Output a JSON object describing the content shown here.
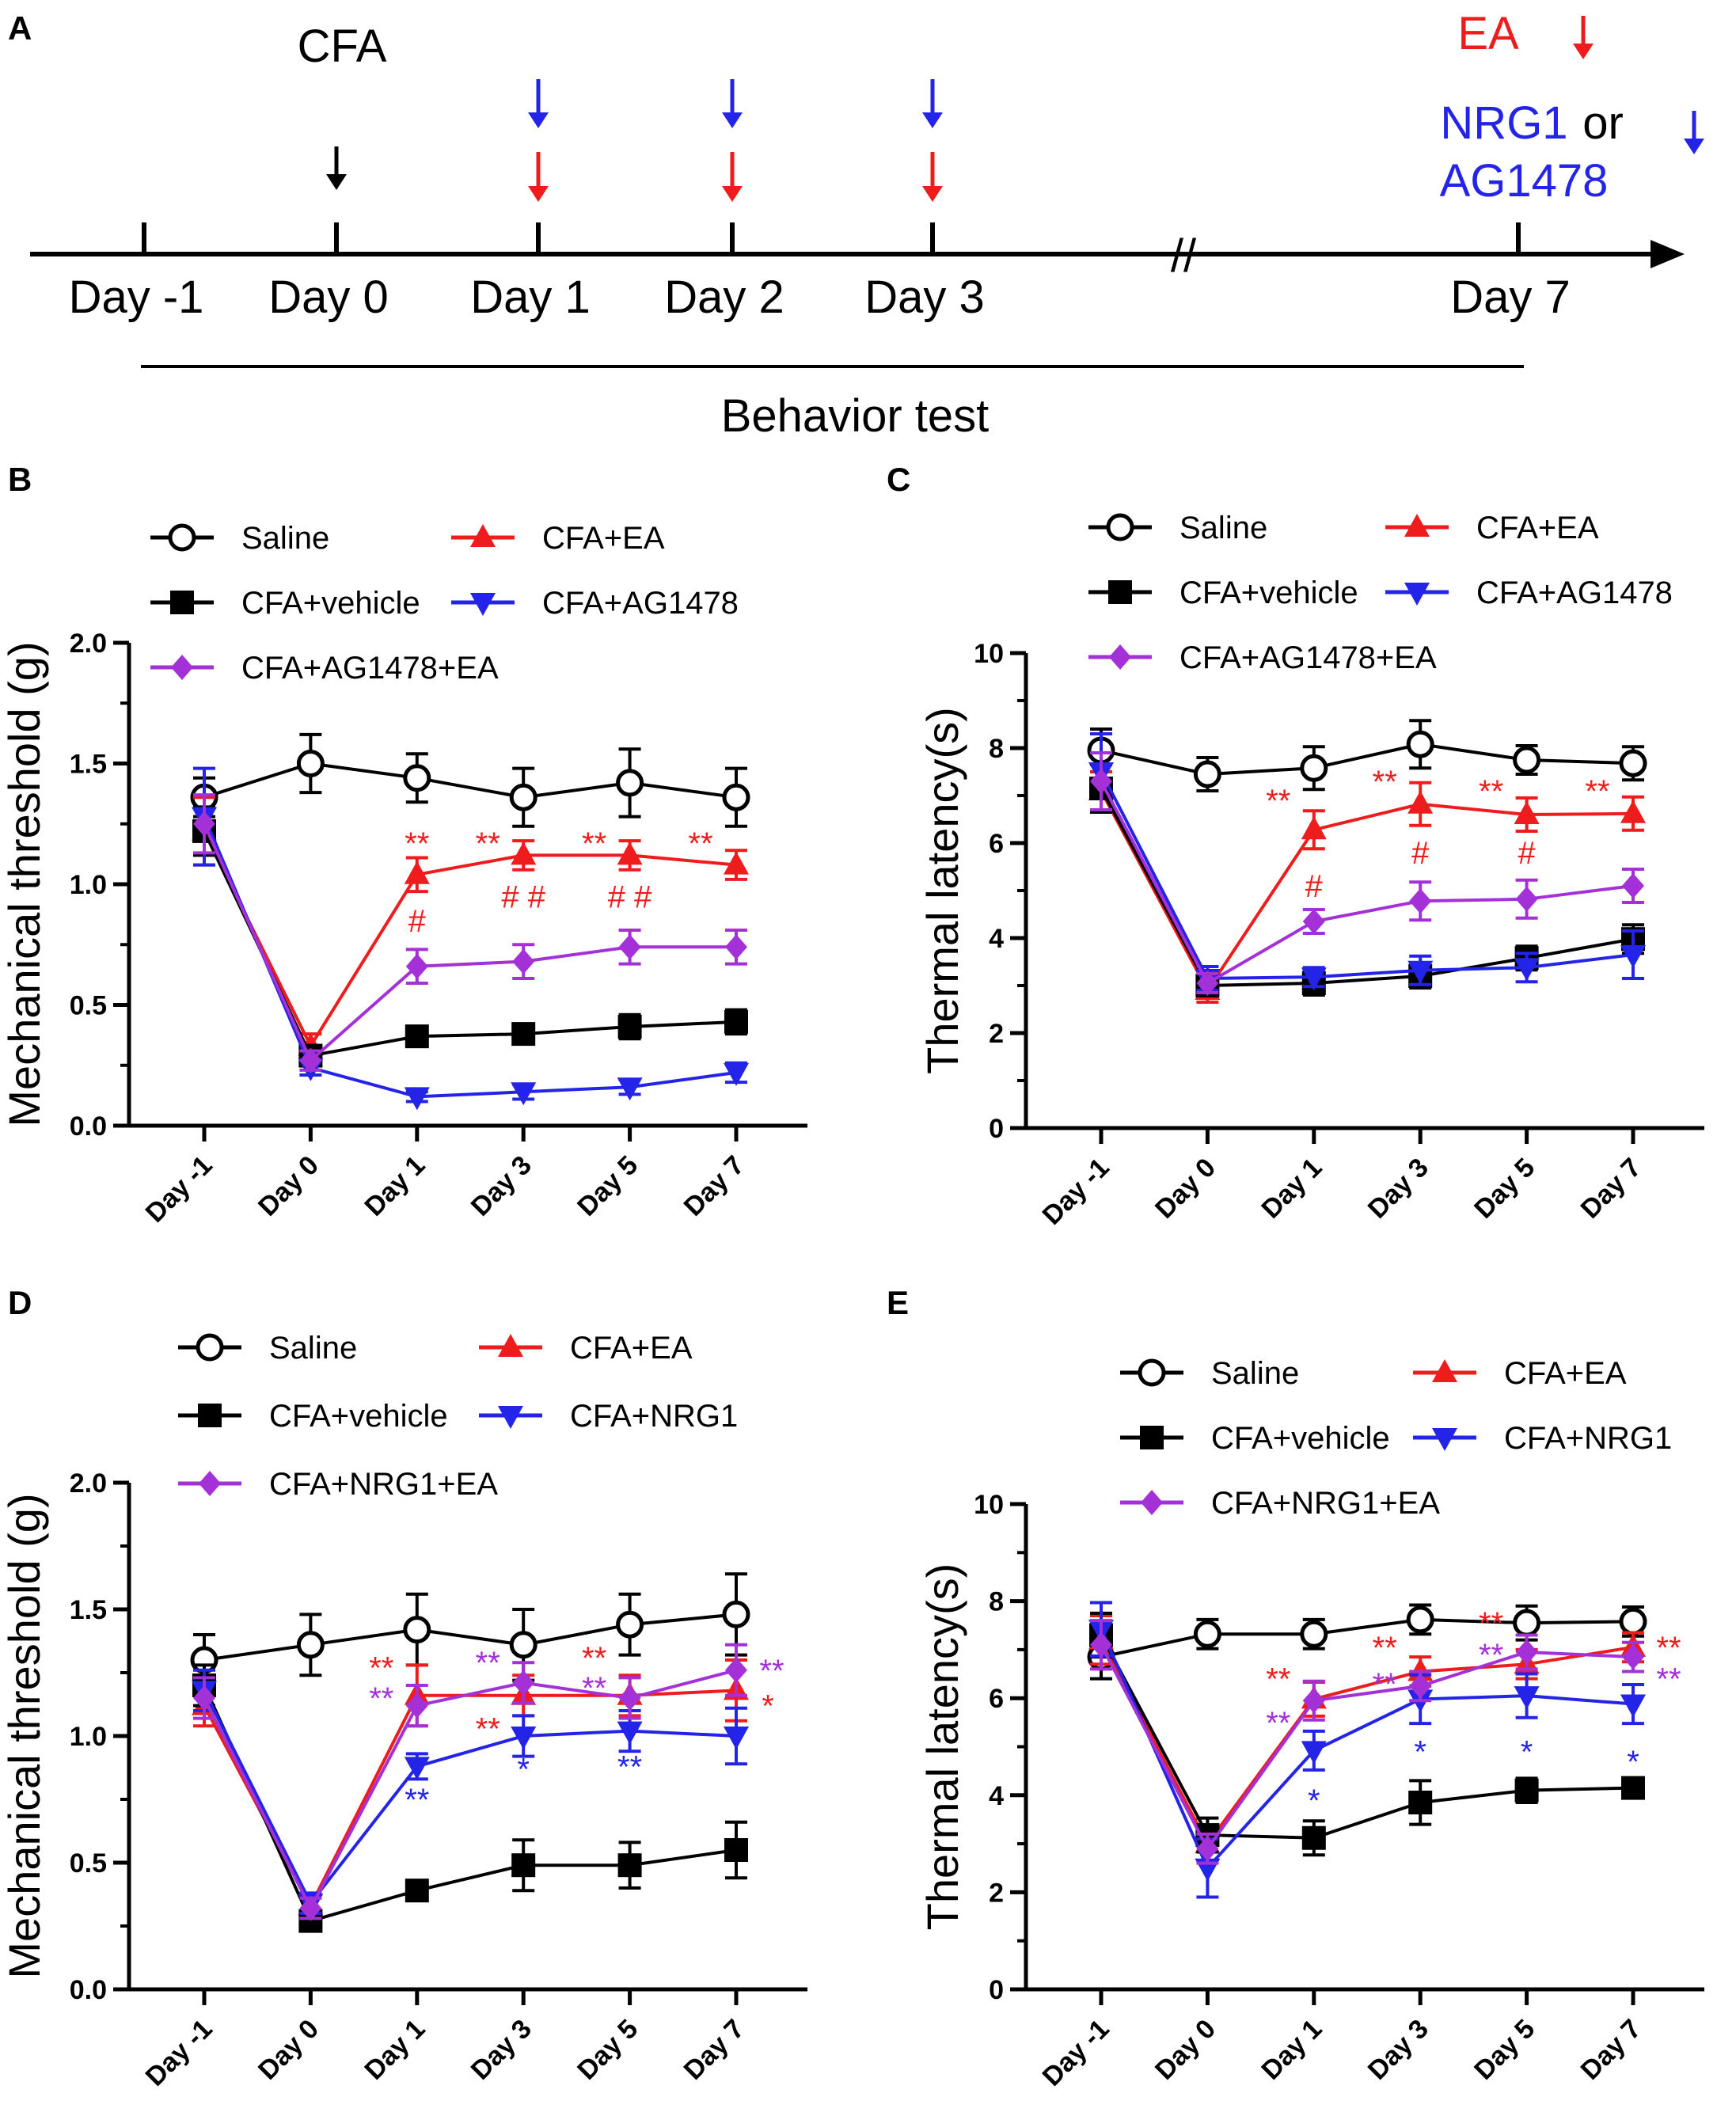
{
  "panel_labels": {
    "A": "A",
    "B": "B",
    "C": "C",
    "D": "D",
    "E": "E"
  },
  "colors": {
    "black": "#000000",
    "red": "#ee1c1c",
    "blue": "#2424e8",
    "purple": "#a431d8"
  },
  "timeline": {
    "cfa_label": "CFA",
    "ea_label": "EA",
    "nrg1_label": "NRG1",
    "or_label": "or",
    "ag_label": "AG1478",
    "behavior_label": "Behavior test",
    "break_mark": "//",
    "days": [
      "Day -1",
      "Day 0",
      "Day 1",
      "Day 2",
      "Day 3",
      "Day 7"
    ]
  },
  "chart_data": [
    {
      "panel": "B",
      "type": "line",
      "ylabel": "Mechanical threshold (g)",
      "ylim": [
        0,
        2.0
      ],
      "yticks": [
        "0.0",
        "0.5",
        "1.0",
        "1.5",
        "2.0"
      ],
      "categories": [
        "Day -1",
        "Day 0",
        "Day 1",
        "Day 3",
        "Day 5",
        "Day 7"
      ],
      "legend": {
        "position": "top",
        "items": [
          "Saline",
          "CFA+EA",
          "CFA+vehicle",
          "CFA+AG1478",
          "CFA+AG1478+EA"
        ]
      },
      "series": [
        {
          "name": "Saline",
          "color": "black",
          "marker": "circle",
          "values": [
            1.36,
            1.5,
            1.44,
            1.36,
            1.42,
            1.36
          ],
          "err": [
            0.08,
            0.12,
            0.1,
            0.12,
            0.14,
            0.12
          ]
        },
        {
          "name": "CFA+EA",
          "color": "red",
          "marker": "triangle-up",
          "values": [
            1.22,
            0.33,
            1.04,
            1.12,
            1.12,
            1.08
          ],
          "err": [
            0.14,
            0.05,
            0.07,
            0.06,
            0.06,
            0.06
          ]
        },
        {
          "name": "CFA+vehicle",
          "color": "black",
          "marker": "square",
          "values": [
            1.22,
            0.29,
            0.37,
            0.38,
            0.41,
            0.43
          ],
          "err": [
            0.1,
            0.04,
            0.03,
            0.04,
            0.05,
            0.05
          ]
        },
        {
          "name": "CFA+AG1478",
          "color": "blue",
          "marker": "triangle-down",
          "values": [
            1.28,
            0.24,
            0.12,
            0.14,
            0.16,
            0.22
          ],
          "err": [
            0.2,
            0.03,
            0.02,
            0.03,
            0.03,
            0.04
          ]
        },
        {
          "name": "CFA+AG1478+EA",
          "color": "purple",
          "marker": "diamond",
          "values": [
            1.25,
            0.27,
            0.66,
            0.68,
            0.74,
            0.74
          ],
          "err": [
            0.12,
            0.04,
            0.07,
            0.07,
            0.07,
            0.07
          ]
        }
      ],
      "annotations": [
        {
          "text": "**",
          "color": "red",
          "cat": 2,
          "y": 1.17,
          "dx": 0
        },
        {
          "text": "#",
          "color": "red",
          "cat": 2,
          "y": 0.85,
          "dx": 0
        },
        {
          "text": "**",
          "color": "red",
          "cat": 3,
          "y": 1.17,
          "dx": -45
        },
        {
          "text": "# #",
          "color": "red",
          "cat": 3,
          "y": 0.95,
          "dx": 0
        },
        {
          "text": "**",
          "color": "red",
          "cat": 4,
          "y": 1.17,
          "dx": -45
        },
        {
          "text": "# #",
          "color": "red",
          "cat": 4,
          "y": 0.95,
          "dx": 0
        },
        {
          "text": "**",
          "color": "red",
          "cat": 5,
          "y": 1.17,
          "dx": -45
        }
      ]
    },
    {
      "panel": "C",
      "type": "line",
      "ylabel": "Thermal latency(s)",
      "ylim": [
        0,
        10
      ],
      "yticks": [
        "0",
        "2",
        "4",
        "6",
        "8",
        "10"
      ],
      "categories": [
        "Day -1",
        "Day 0",
        "Day 1",
        "Day 3",
        "Day 5",
        "Day 7"
      ],
      "legend": {
        "position": "top",
        "items": [
          "Saline",
          "CFA+EA",
          "CFA+vehicle",
          "CFA+AG1478",
          "CFA+AG1478+EA"
        ]
      },
      "series": [
        {
          "name": "Saline",
          "color": "black",
          "marker": "circle",
          "values": [
            7.95,
            7.45,
            7.58,
            8.08,
            7.75,
            7.68
          ],
          "err": [
            0.45,
            0.35,
            0.45,
            0.5,
            0.3,
            0.35
          ]
        },
        {
          "name": "CFA+EA",
          "color": "red",
          "marker": "triangle-up",
          "values": [
            7.1,
            2.9,
            6.28,
            6.82,
            6.6,
            6.62
          ],
          "err": [
            0.4,
            0.25,
            0.4,
            0.45,
            0.35,
            0.35
          ]
        },
        {
          "name": "CFA+vehicle",
          "color": "black",
          "marker": "square",
          "values": [
            7.15,
            3.0,
            3.05,
            3.2,
            3.58,
            3.98
          ],
          "err": [
            0.5,
            0.2,
            0.25,
            0.25,
            0.25,
            0.3
          ]
        },
        {
          "name": "CFA+AG1478",
          "color": "blue",
          "marker": "triangle-down",
          "values": [
            7.5,
            3.15,
            3.18,
            3.32,
            3.38,
            3.65
          ],
          "err": [
            0.8,
            0.25,
            0.2,
            0.3,
            0.3,
            0.5
          ]
        },
        {
          "name": "CFA+AG1478+EA",
          "color": "purple",
          "marker": "diamond",
          "values": [
            7.3,
            3.05,
            4.35,
            4.78,
            4.82,
            5.1
          ],
          "err": [
            0.6,
            0.2,
            0.25,
            0.4,
            0.4,
            0.35
          ]
        }
      ],
      "annotations": [
        {
          "text": "**",
          "color": "red",
          "cat": 2,
          "y": 6.9,
          "dx": -45
        },
        {
          "text": "#",
          "color": "red",
          "cat": 2,
          "y": 5.1,
          "dx": 0
        },
        {
          "text": "**",
          "color": "red",
          "cat": 3,
          "y": 7.3,
          "dx": -45
        },
        {
          "text": "#",
          "color": "red",
          "cat": 3,
          "y": 5.8,
          "dx": 0
        },
        {
          "text": "**",
          "color": "red",
          "cat": 4,
          "y": 7.1,
          "dx": -45
        },
        {
          "text": "#",
          "color": "red",
          "cat": 4,
          "y": 5.8,
          "dx": 0
        },
        {
          "text": "**",
          "color": "red",
          "cat": 5,
          "y": 7.1,
          "dx": -45
        }
      ]
    },
    {
      "panel": "D",
      "type": "line",
      "ylabel": "Mechanical threshold (g)",
      "ylim": [
        0,
        2.0
      ],
      "yticks": [
        "0.0",
        "0.5",
        "1.0",
        "1.5",
        "2.0"
      ],
      "categories": [
        "Day -1",
        "Day 0",
        "Day 1",
        "Day 3",
        "Day 5",
        "Day 7"
      ],
      "legend": {
        "position": "top",
        "items": [
          "Saline",
          "CFA+EA",
          "CFA+vehicle",
          "CFA+NRG1",
          "CFA+NRG1+EA"
        ]
      },
      "series": [
        {
          "name": "Saline",
          "color": "black",
          "marker": "circle",
          "values": [
            1.3,
            1.36,
            1.42,
            1.36,
            1.44,
            1.48
          ],
          "err": [
            0.1,
            0.12,
            0.14,
            0.14,
            0.12,
            0.16
          ]
        },
        {
          "name": "CFA+EA",
          "color": "red",
          "marker": "triangle-up",
          "values": [
            1.12,
            0.33,
            1.16,
            1.16,
            1.16,
            1.18
          ],
          "err": [
            0.08,
            0.04,
            0.12,
            0.08,
            0.08,
            0.12
          ]
        },
        {
          "name": "CFA+vehicle",
          "color": "black",
          "marker": "square",
          "values": [
            1.2,
            0.27,
            0.39,
            0.49,
            0.49,
            0.55
          ],
          "err": [
            0.08,
            0.03,
            0.04,
            0.1,
            0.09,
            0.11
          ]
        },
        {
          "name": "CFA+NRG1",
          "color": "blue",
          "marker": "triangle-down",
          "values": [
            1.18,
            0.34,
            0.88,
            1.0,
            1.02,
            1.0
          ],
          "err": [
            0.08,
            0.04,
            0.05,
            0.08,
            0.08,
            0.11
          ]
        },
        {
          "name": "CFA+NRG1+EA",
          "color": "purple",
          "marker": "diamond",
          "values": [
            1.15,
            0.32,
            1.12,
            1.21,
            1.15,
            1.26
          ],
          "err": [
            0.08,
            0.04,
            0.08,
            0.08,
            0.08,
            0.1
          ]
        }
      ],
      "annotations": [
        {
          "text": "**",
          "color": "red",
          "cat": 2,
          "y": 1.27,
          "dx": -45
        },
        {
          "text": "**",
          "color": "purple",
          "cat": 2,
          "y": 1.15,
          "dx": -45
        },
        {
          "text": "**",
          "color": "blue",
          "cat": 2,
          "y": 0.75,
          "dx": 0
        },
        {
          "text": "**",
          "color": "purple",
          "cat": 3,
          "y": 1.29,
          "dx": -45
        },
        {
          "text": "**",
          "color": "red",
          "cat": 3,
          "y": 1.03,
          "dx": -45
        },
        {
          "text": "*",
          "color": "blue",
          "cat": 3,
          "y": 0.87,
          "dx": 0
        },
        {
          "text": "**",
          "color": "red",
          "cat": 4,
          "y": 1.31,
          "dx": -45
        },
        {
          "text": "**",
          "color": "purple",
          "cat": 4,
          "y": 1.19,
          "dx": -45
        },
        {
          "text": "**",
          "color": "blue",
          "cat": 4,
          "y": 0.88,
          "dx": 0
        },
        {
          "text": "**",
          "color": "purple",
          "cat": 5,
          "y": 1.26,
          "dx": 45
        },
        {
          "text": "*",
          "color": "red",
          "cat": 5,
          "y": 1.12,
          "dx": 40
        }
      ]
    },
    {
      "panel": "E",
      "type": "line",
      "ylabel": "Thermal latency(s)",
      "ylim": [
        0,
        10
      ],
      "yticks": [
        "0",
        "2",
        "4",
        "6",
        "8",
        "10"
      ],
      "categories": [
        "Day -1",
        "Day 0",
        "Day 1",
        "Day 3",
        "Day 5",
        "Day 7"
      ],
      "legend": {
        "position": "top",
        "items": [
          "Saline",
          "CFA+EA",
          "CFA+vehicle",
          "CFA+NRG1",
          "CFA+NRG1+EA"
        ]
      },
      "series": [
        {
          "name": "Saline",
          "color": "black",
          "marker": "circle",
          "values": [
            6.85,
            7.32,
            7.32,
            7.62,
            7.55,
            7.58
          ],
          "err": [
            0.45,
            0.3,
            0.3,
            0.3,
            0.35,
            0.3
          ]
        },
        {
          "name": "CFA+EA",
          "color": "red",
          "marker": "triangle-up",
          "values": [
            7.2,
            3.0,
            5.98,
            6.55,
            6.7,
            7.05
          ],
          "err": [
            0.5,
            0.35,
            0.35,
            0.3,
            0.3,
            0.3
          ]
        },
        {
          "name": "CFA+vehicle",
          "color": "black",
          "marker": "square",
          "values": [
            7.3,
            3.18,
            3.12,
            3.85,
            4.1,
            4.15
          ],
          "err": [
            0.45,
            0.35,
            0.35,
            0.45,
            0.25,
            0.2
          ]
        },
        {
          "name": "CFA+NRG1",
          "color": "blue",
          "marker": "triangle-down",
          "values": [
            7.42,
            2.5,
            4.92,
            5.98,
            6.05,
            5.88
          ],
          "err": [
            0.55,
            0.6,
            0.4,
            0.5,
            0.45,
            0.4
          ]
        },
        {
          "name": "CFA+NRG1+EA",
          "color": "purple",
          "marker": "diamond",
          "values": [
            7.1,
            2.9,
            5.95,
            6.25,
            6.95,
            6.85
          ],
          "err": [
            0.5,
            0.3,
            0.4,
            0.3,
            0.35,
            0.3
          ]
        }
      ],
      "annotations": [
        {
          "text": "**",
          "color": "red",
          "cat": 2,
          "y": 6.4,
          "dx": -45
        },
        {
          "text": "**",
          "color": "purple",
          "cat": 2,
          "y": 5.5,
          "dx": -45
        },
        {
          "text": "*",
          "color": "blue",
          "cat": 2,
          "y": 3.9,
          "dx": 0
        },
        {
          "text": "**",
          "color": "red",
          "cat": 3,
          "y": 7.05,
          "dx": -45
        },
        {
          "text": "**",
          "color": "purple",
          "cat": 3,
          "y": 6.3,
          "dx": -45
        },
        {
          "text": "*",
          "color": "blue",
          "cat": 3,
          "y": 4.9,
          "dx": 0
        },
        {
          "text": "**",
          "color": "red",
          "cat": 4,
          "y": 7.55,
          "dx": -45
        },
        {
          "text": "**",
          "color": "purple",
          "cat": 4,
          "y": 6.9,
          "dx": -45
        },
        {
          "text": "*",
          "color": "blue",
          "cat": 4,
          "y": 4.9,
          "dx": 0
        },
        {
          "text": "**",
          "color": "red",
          "cat": 5,
          "y": 7.05,
          "dx": 45
        },
        {
          "text": "**",
          "color": "purple",
          "cat": 5,
          "y": 6.4,
          "dx": 45
        },
        {
          "text": "*",
          "color": "blue",
          "cat": 5,
          "y": 4.7,
          "dx": 0
        }
      ]
    }
  ]
}
